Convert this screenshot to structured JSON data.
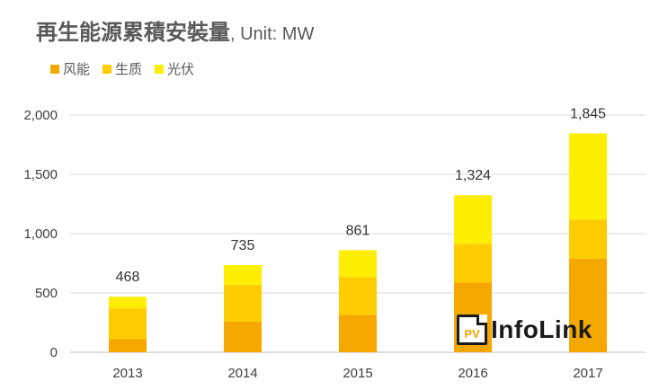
{
  "chart_data": {
    "type": "bar",
    "stacked": true,
    "title": "再生能源累積安裝量",
    "title_unit": ", Unit: MW",
    "categories": [
      "2013",
      "2014",
      "2015",
      "2016",
      "2017"
    ],
    "series": [
      {
        "name": "风能",
        "color": "#f5a800",
        "values": [
          110,
          260,
          315,
          590,
          790
        ]
      },
      {
        "name": "生质",
        "color": "#ffcc00",
        "values": [
          260,
          310,
          320,
          325,
          330
        ]
      },
      {
        "name": "光伏",
        "color": "#ffee00",
        "values": [
          98,
          165,
          226,
          409,
          725
        ]
      }
    ],
    "totals": [
      "468",
      "735",
      "861",
      "1,324",
      "1,845"
    ],
    "ylim": [
      0,
      2000
    ],
    "yticks": [
      {
        "value": 0,
        "label": "0"
      },
      {
        "value": 500,
        "label": "500"
      },
      {
        "value": 1000,
        "label": "1,000"
      },
      {
        "value": 1500,
        "label": "1,500"
      },
      {
        "value": 2000,
        "label": "2,000"
      }
    ],
    "xlabel": "",
    "ylabel": "",
    "grid": true,
    "legend_position": "top-left"
  },
  "watermark": {
    "badge": "PV",
    "text": "InfoLink"
  }
}
